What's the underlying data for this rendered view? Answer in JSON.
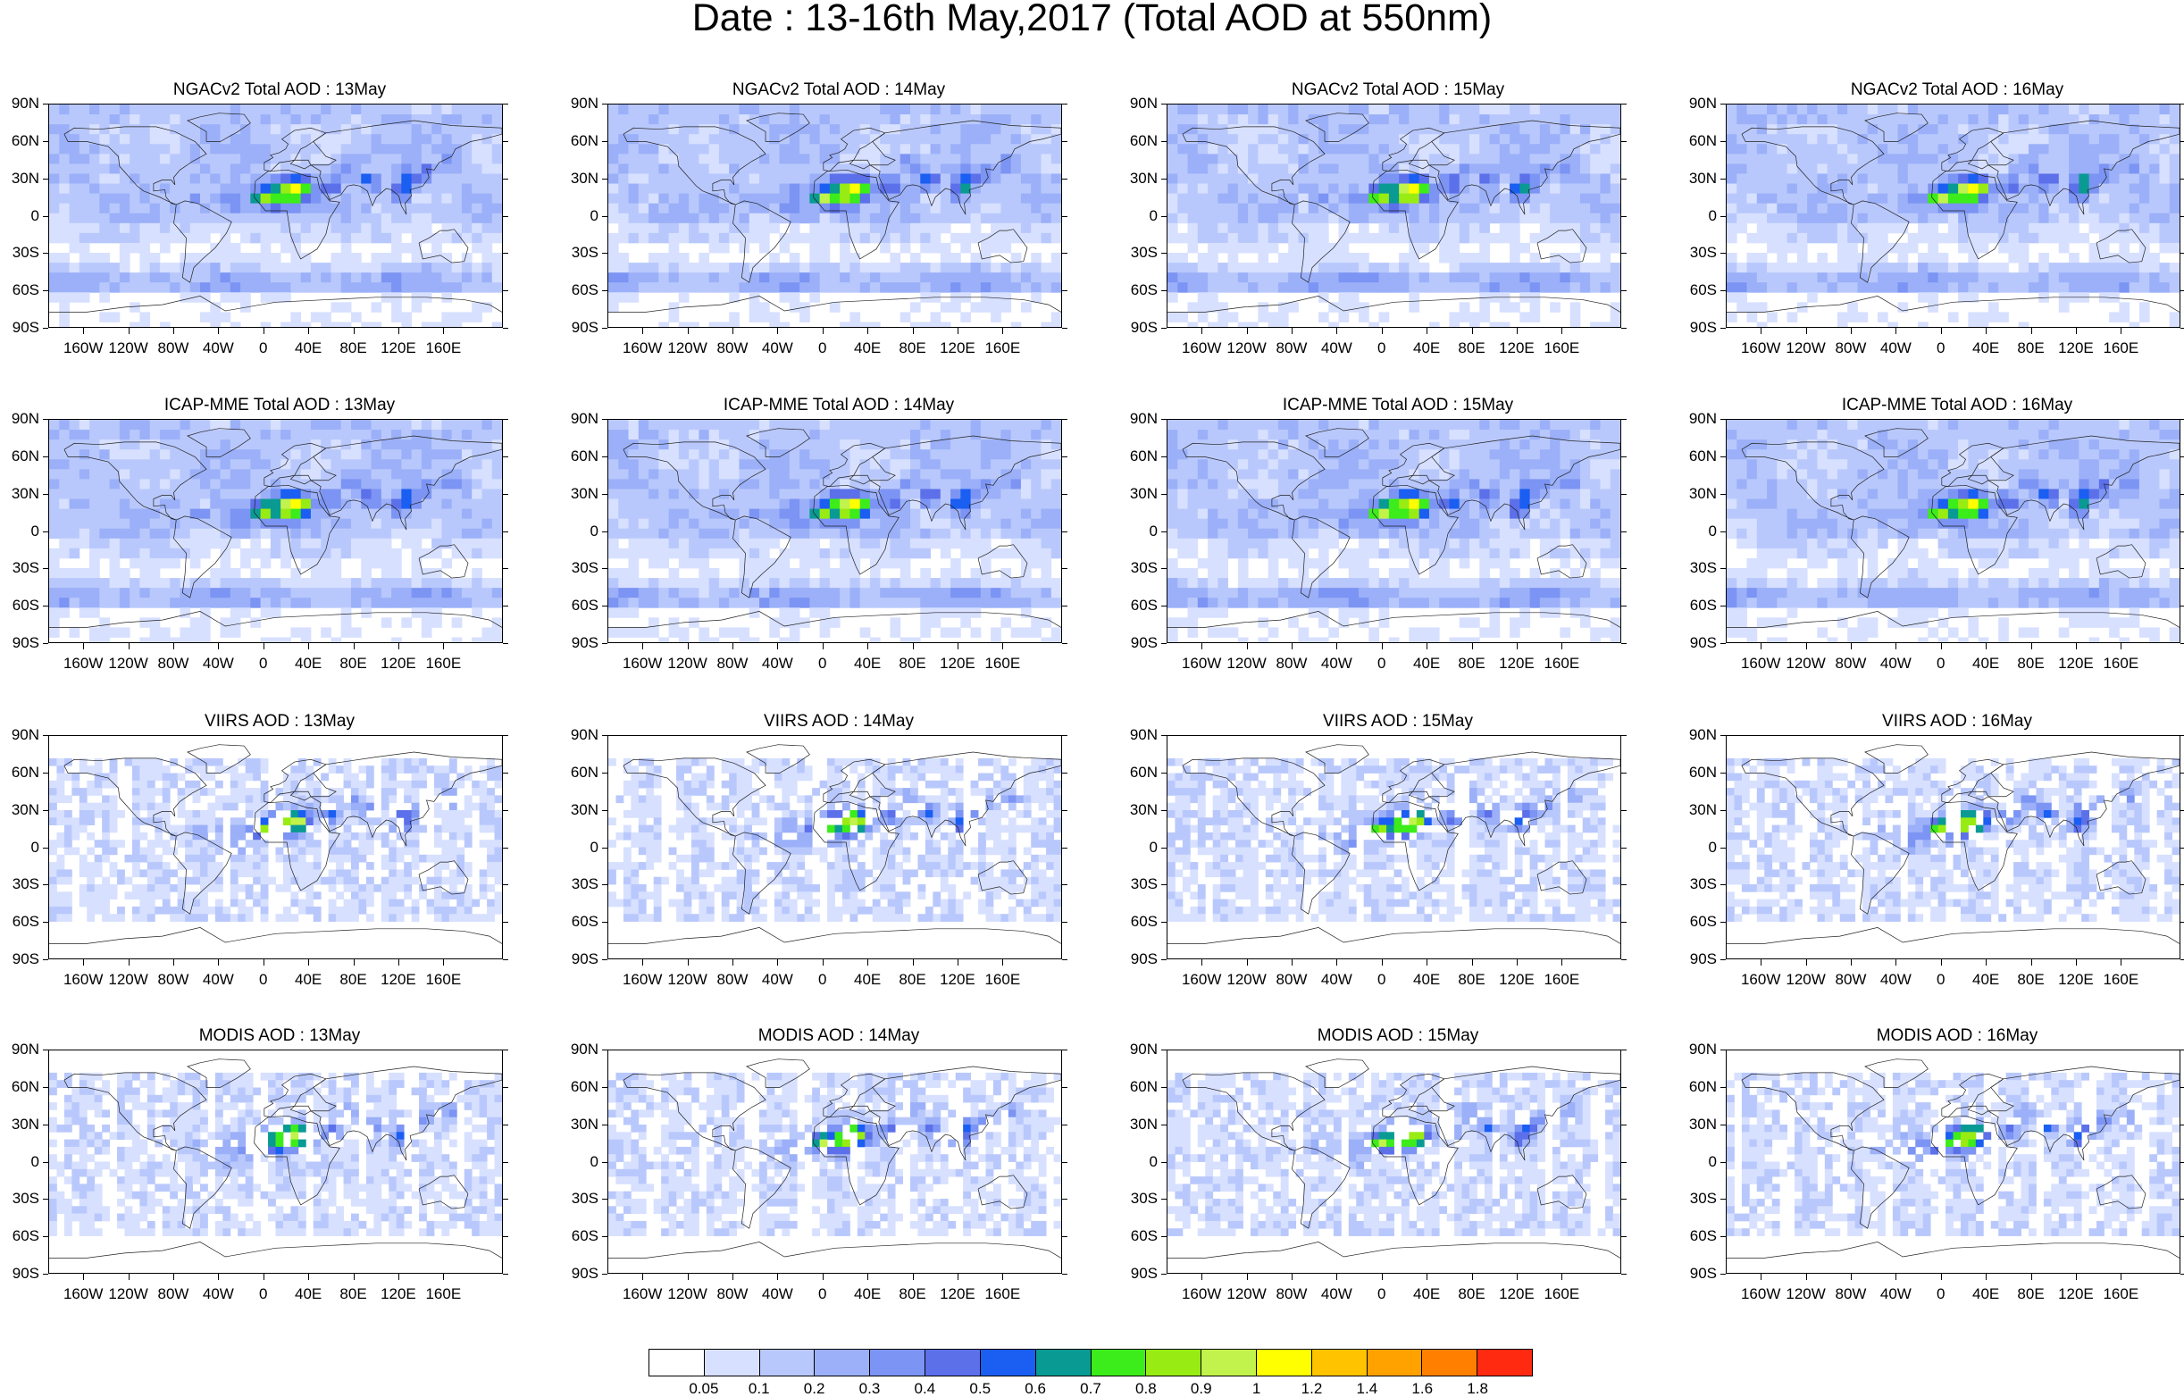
{
  "title": "Date : 13-16th May,2017 (Total AOD at 550nm)",
  "axes": {
    "lat_labels": [
      "90N",
      "60N",
      "30N",
      "0",
      "30S",
      "60S",
      "90S"
    ],
    "lon_labels": [
      "160W",
      "120W",
      "80W",
      "40W",
      "0",
      "40E",
      "80E",
      "120E",
      "160E"
    ]
  },
  "colorbar": {
    "colors": [
      "#ffffff",
      "#d7e0ff",
      "#b9c8fc",
      "#9bb0f8",
      "#7c94f3",
      "#5c70ea",
      "#1a5ef2",
      "#0a9a94",
      "#3cec1b",
      "#98ec14",
      "#c2f34c",
      "#ffff00",
      "#ffc300",
      "#ffa200",
      "#ff7f00",
      "#ff2a10"
    ],
    "labels": [
      "0.05",
      "0.1",
      "0.2",
      "0.3",
      "0.4",
      "0.5",
      "0.6",
      "0.7",
      "0.8",
      "0.9",
      "1",
      "1.2",
      "1.4",
      "1.6",
      "1.8"
    ]
  },
  "panels": [
    {
      "title": "NGACv2 Total AOD : 13May",
      "source": "model"
    },
    {
      "title": "NGACv2 Total AOD : 14May",
      "source": "model"
    },
    {
      "title": "NGACv2 Total AOD : 15May",
      "source": "model"
    },
    {
      "title": "NGACv2 Total AOD : 16May",
      "source": "model"
    },
    {
      "title": "ICAP-MME Total AOD : 13May",
      "source": "model"
    },
    {
      "title": "ICAP-MME Total AOD : 14May",
      "source": "model"
    },
    {
      "title": "ICAP-MME Total AOD : 15May",
      "source": "model"
    },
    {
      "title": "ICAP-MME Total AOD : 16May",
      "source": "model"
    },
    {
      "title": "VIIRS AOD : 13May",
      "source": "satellite"
    },
    {
      "title": "VIIRS AOD : 14May",
      "source": "satellite"
    },
    {
      "title": "VIIRS AOD : 15May",
      "source": "satellite"
    },
    {
      "title": "VIIRS AOD : 16May",
      "source": "satellite"
    },
    {
      "title": "MODIS AOD : 13May",
      "source": "satellite"
    },
    {
      "title": "MODIS AOD : 14May",
      "source": "satellite"
    },
    {
      "title": "MODIS AOD : 15May",
      "source": "satellite"
    },
    {
      "title": "MODIS AOD : 16May",
      "source": "satellite"
    }
  ]
}
